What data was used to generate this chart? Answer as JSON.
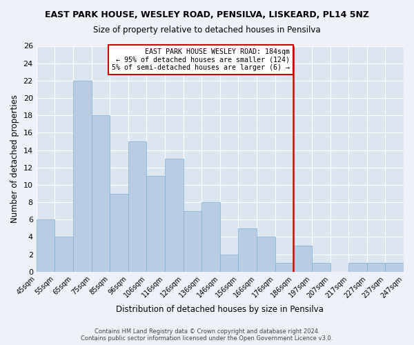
{
  "title": "EAST PARK HOUSE, WESLEY ROAD, PENSILVA, LISKEARD, PL14 5NZ",
  "subtitle": "Size of property relative to detached houses in Pensilva",
  "xlabel": "Distribution of detached houses by size in Pensilva",
  "ylabel": "Number of detached properties",
  "bar_color": "#b8cce4",
  "bar_edge_color": "#7bafd4",
  "background_color": "#dce6f1",
  "grid_color": "#ffffff",
  "vline_color": "#cc0000",
  "annotation_text": "EAST PARK HOUSE WESLEY ROAD: 184sqm\n← 95% of detached houses are smaller (124)\n5% of semi-detached houses are larger (6) →",
  "annotation_box_color": "#ffffff",
  "annotation_border_color": "#cc0000",
  "footer": "Contains HM Land Registry data © Crown copyright and database right 2024.\nContains public sector information licensed under the Open Government Licence v3.0.",
  "bin_labels": [
    "45sqm",
    "55sqm",
    "65sqm",
    "75sqm",
    "85sqm",
    "96sqm",
    "106sqm",
    "116sqm",
    "126sqm",
    "136sqm",
    "146sqm",
    "156sqm",
    "166sqm",
    "176sqm",
    "186sqm",
    "197sqm",
    "207sqm",
    "217sqm",
    "227sqm",
    "237sqm",
    "247sqm"
  ],
  "counts": [
    6,
    4,
    22,
    18,
    9,
    15,
    11,
    13,
    7,
    8,
    2,
    5,
    4,
    1,
    3,
    1,
    0,
    1,
    1,
    1
  ],
  "ylim": [
    0,
    26
  ],
  "yticks": [
    0,
    2,
    4,
    6,
    8,
    10,
    12,
    14,
    16,
    18,
    20,
    22,
    24,
    26
  ],
  "vline_pos": 14
}
